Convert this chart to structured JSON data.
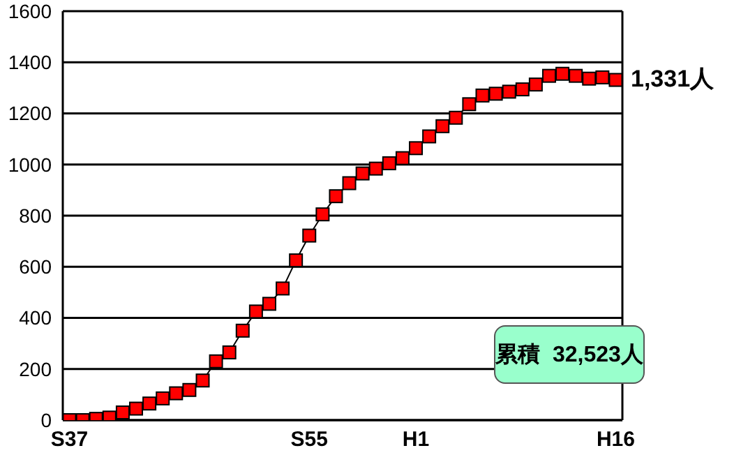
{
  "chart_data": {
    "type": "line",
    "categories": [
      "S37",
      null,
      null,
      null,
      null,
      null,
      null,
      null,
      null,
      null,
      null,
      null,
      null,
      null,
      null,
      null,
      null,
      null,
      "S55",
      null,
      null,
      null,
      null,
      null,
      null,
      null,
      "H1",
      null,
      null,
      null,
      null,
      null,
      null,
      null,
      null,
      null,
      null,
      null,
      null,
      null,
      null,
      "H16"
    ],
    "series": [
      {
        "color": "#ff0000",
        "values": [
          0,
          0,
          5,
          10,
          30,
          45,
          65,
          85,
          105,
          118,
          155,
          230,
          265,
          350,
          425,
          455,
          515,
          625,
          722,
          805,
          876,
          927,
          965,
          984,
          1005,
          1025,
          1064,
          1110,
          1150,
          1183,
          1236,
          1270,
          1277,
          1285,
          1294,
          1313,
          1347,
          1355,
          1347,
          1336,
          1341,
          1331
        ]
      }
    ],
    "ylim": [
      0,
      1600
    ],
    "yticks": [
      0,
      200,
      400,
      600,
      800,
      1000,
      1200,
      1400,
      1600
    ],
    "grid": "y",
    "marker": "square",
    "annotations": [
      "1,331人",
      "累積  32,523人"
    ]
  }
}
